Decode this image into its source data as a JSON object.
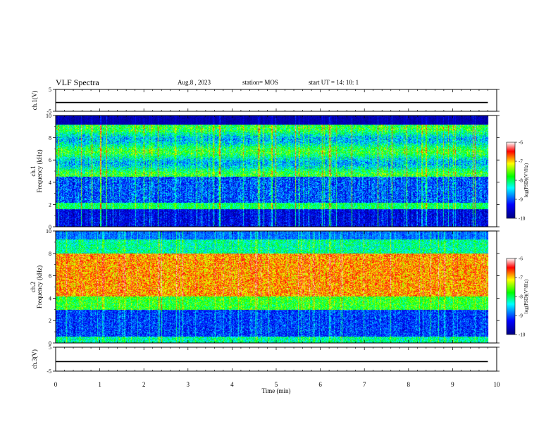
{
  "header": {
    "title": "VLF Spectra",
    "date": "Aug.8 , 2023",
    "station": "station= MOS",
    "start": "start UT = 14: 10: 1"
  },
  "chart_data": [
    {
      "type": "line",
      "name": "ch1-waveform",
      "ylabel": "ch.1(V)",
      "ylim": [
        -5,
        5
      ],
      "yticks": [
        "5",
        "-5"
      ],
      "x": [
        0,
        9.8
      ],
      "values": [
        -1,
        -1
      ]
    },
    {
      "type": "heatmap",
      "name": "ch1-spectrogram",
      "ylabel_line1": "ch.1",
      "ylabel_line2": "Frequency (kHz)",
      "ylim": [
        0,
        10
      ],
      "yticks": [
        "0",
        "2",
        "4",
        "6",
        "8",
        "10"
      ],
      "colorbar": {
        "label": "log(PSD)(V²/Hz)",
        "range": [
          -10,
          -6
        ],
        "ticks": [
          "-6",
          "-7",
          "-8",
          "-9",
          "-10"
        ]
      }
    },
    {
      "type": "heatmap",
      "name": "ch2-spectrogram",
      "ylabel_line1": "ch.2",
      "ylabel_line2": "Frequency (kHz)",
      "ylim": [
        0,
        10
      ],
      "yticks": [
        "0",
        "2",
        "4",
        "6",
        "8",
        "10"
      ],
      "colorbar": {
        "label": "log(PSD)(V²/Hz)",
        "range": [
          -10,
          -6
        ],
        "ticks": [
          "-6",
          "-7",
          "-8",
          "-9",
          "-10"
        ]
      }
    },
    {
      "type": "line",
      "name": "ch3-waveform",
      "ylabel": "ch.3(V)",
      "ylim": [
        -5,
        5
      ],
      "yticks": [
        "5",
        "-5"
      ],
      "x": [
        0,
        9.8
      ],
      "values": [
        -1,
        -1
      ]
    }
  ],
  "xaxis": {
    "label": "Time (min)",
    "range": [
      0,
      10
    ],
    "ticks": [
      "0",
      "1",
      "2",
      "3",
      "4",
      "5",
      "6",
      "7",
      "8",
      "9",
      "10"
    ]
  }
}
